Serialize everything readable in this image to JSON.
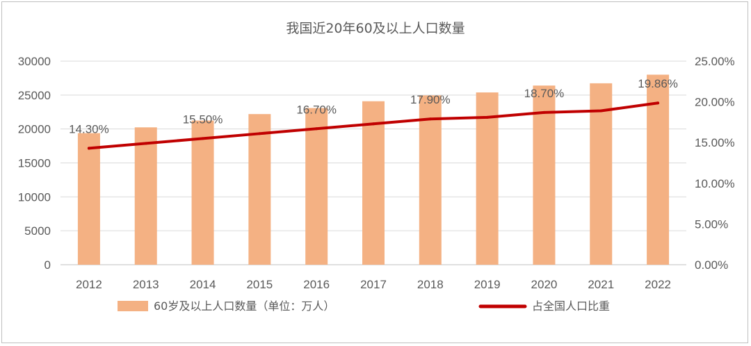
{
  "chart_data": {
    "type": "bar",
    "title": "我国近20年60及以上人口数量",
    "categories": [
      "2012",
      "2013",
      "2014",
      "2015",
      "2016",
      "2017",
      "2018",
      "2019",
      "2020",
      "2021",
      "2022"
    ],
    "series": [
      {
        "name": "60岁及以上人口数量（单位：万人）",
        "type": "bar",
        "axis": "left",
        "color": "#F4B183",
        "values": [
          19390,
          20243,
          21242,
          22200,
          23086,
          24090,
          24949,
          25388,
          26402,
          26736,
          28004
        ]
      },
      {
        "name": "占全国人口比重",
        "type": "line",
        "axis": "right",
        "color": "#C00000",
        "values": [
          14.3,
          14.9,
          15.5,
          16.1,
          16.7,
          17.3,
          17.9,
          18.1,
          18.7,
          18.9,
          19.86
        ],
        "labels": [
          "14.30%",
          "",
          "15.50%",
          "",
          "16.70%",
          "",
          "17.90%",
          "",
          "18.70%",
          "",
          "19.86%"
        ]
      }
    ],
    "y_left": {
      "min": 0,
      "max": 30000,
      "step": 5000,
      "ticks": [
        "0",
        "5000",
        "10000",
        "15000",
        "20000",
        "25000",
        "30000"
      ]
    },
    "y_right": {
      "min": 0,
      "max": 25,
      "step": 5,
      "ticks": [
        "0.00%",
        "5.00%",
        "10.00%",
        "15.00%",
        "20.00%",
        "25.00%"
      ]
    },
    "grid": true,
    "legend_position": "bottom"
  }
}
